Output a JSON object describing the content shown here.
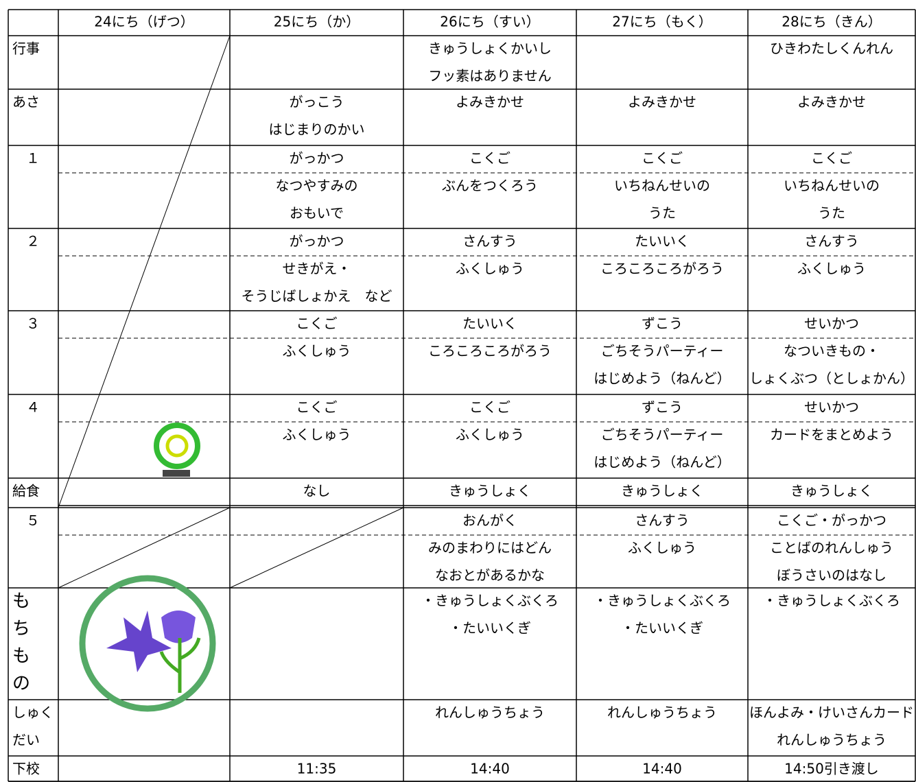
{
  "table": {
    "columns": [
      "24にち（げつ）",
      "25にち（か）",
      "26にち（すい）",
      "27にち（もく）",
      "28にち（きん）"
    ],
    "rows": [
      {
        "label": [
          "行事"
        ],
        "cells": [
          [],
          [],
          [
            "きゅうしょくかいし",
            "フッ素はありません"
          ],
          [],
          [
            "ひきわたしくんれん"
          ]
        ]
      },
      {
        "label": [
          "あさ"
        ],
        "cells": [
          [],
          [
            "がっこう",
            "はじまりのかい"
          ],
          [
            "よみきかせ"
          ],
          [
            "よみきかせ"
          ],
          [
            "よみきかせ"
          ]
        ]
      },
      {
        "label": [
          "１"
        ],
        "cells": [
          [],
          [
            "がっかつ",
            "なつやすみの",
            "おもいで"
          ],
          [
            "こくご",
            "ぶんをつくろう"
          ],
          [
            "こくご",
            "いちねんせいの",
            "うた"
          ],
          [
            "こくご",
            "いちねんせいの",
            "うた"
          ]
        ]
      },
      {
        "label": [
          "２"
        ],
        "cells": [
          [],
          [
            "がっかつ",
            "せきがえ・",
            "そうじばしょかえ　など"
          ],
          [
            "さんすう",
            "ふくしゅう"
          ],
          [
            "たいいく",
            "ころころころがろう"
          ],
          [
            "さんすう",
            "ふくしゅう"
          ]
        ]
      },
      {
        "label": [
          "３"
        ],
        "cells": [
          [],
          [
            "こくご",
            "ふくしゅう"
          ],
          [
            "たいいく",
            "ころころころがろう"
          ],
          [
            "ずこう",
            "ごちそうパーティー",
            "はじめよう（ねんど）"
          ],
          [
            "せいかつ",
            "なついきもの・",
            "しょくぶつ（としょかん）"
          ]
        ]
      },
      {
        "label": [
          "４"
        ],
        "cells": [
          [],
          [
            "こくご",
            "ふくしゅう"
          ],
          [
            "こくご",
            "ふくしゅう"
          ],
          [
            "ずこう",
            "ごちそうパーティー",
            "はじめよう（ねんど）"
          ],
          [
            "せいかつ",
            "カードをまとめよう"
          ]
        ]
      },
      {
        "label": [
          "給食"
        ],
        "cells": [
          [],
          [
            "なし"
          ],
          [
            "きゅうしょく"
          ],
          [
            "きゅうしょく"
          ],
          [
            "きゅうしょく"
          ]
        ]
      },
      {
        "label": [
          "５"
        ],
        "cells": [
          [],
          [],
          [
            "おんがく",
            "みのまわりにはどん",
            "なおとがあるかな"
          ],
          [
            "さんすう",
            "ふくしゅう"
          ],
          [
            "こくご・がっかつ",
            "ことばのれんしゅう",
            "ぼうさいのはなし"
          ]
        ]
      },
      {
        "label": [
          "も",
          "ち",
          "も",
          "の"
        ],
        "cells": [
          [],
          [],
          [
            "・きゅうしょくぶくろ",
            "・たいいくぎ"
          ],
          [
            "・きゅうしょくぶくろ",
            "・たいいくぎ"
          ],
          [
            "・きゅうしょくぶくろ"
          ]
        ]
      },
      {
        "label": [
          "しゅく",
          "だい"
        ],
        "cells": [
          [],
          [],
          [
            "れんしゅうちょう"
          ],
          [
            "れんしゅうちょう"
          ],
          [
            "ほんよみ・けいさんカード",
            "れんしゅうちょう"
          ]
        ]
      },
      {
        "label": [
          "下校"
        ],
        "cells": [
          [],
          [
            "11:35"
          ],
          [
            "14:40"
          ],
          [
            "14:40"
          ],
          [
            "14:50引き渡し"
          ]
        ]
      }
    ]
  }
}
